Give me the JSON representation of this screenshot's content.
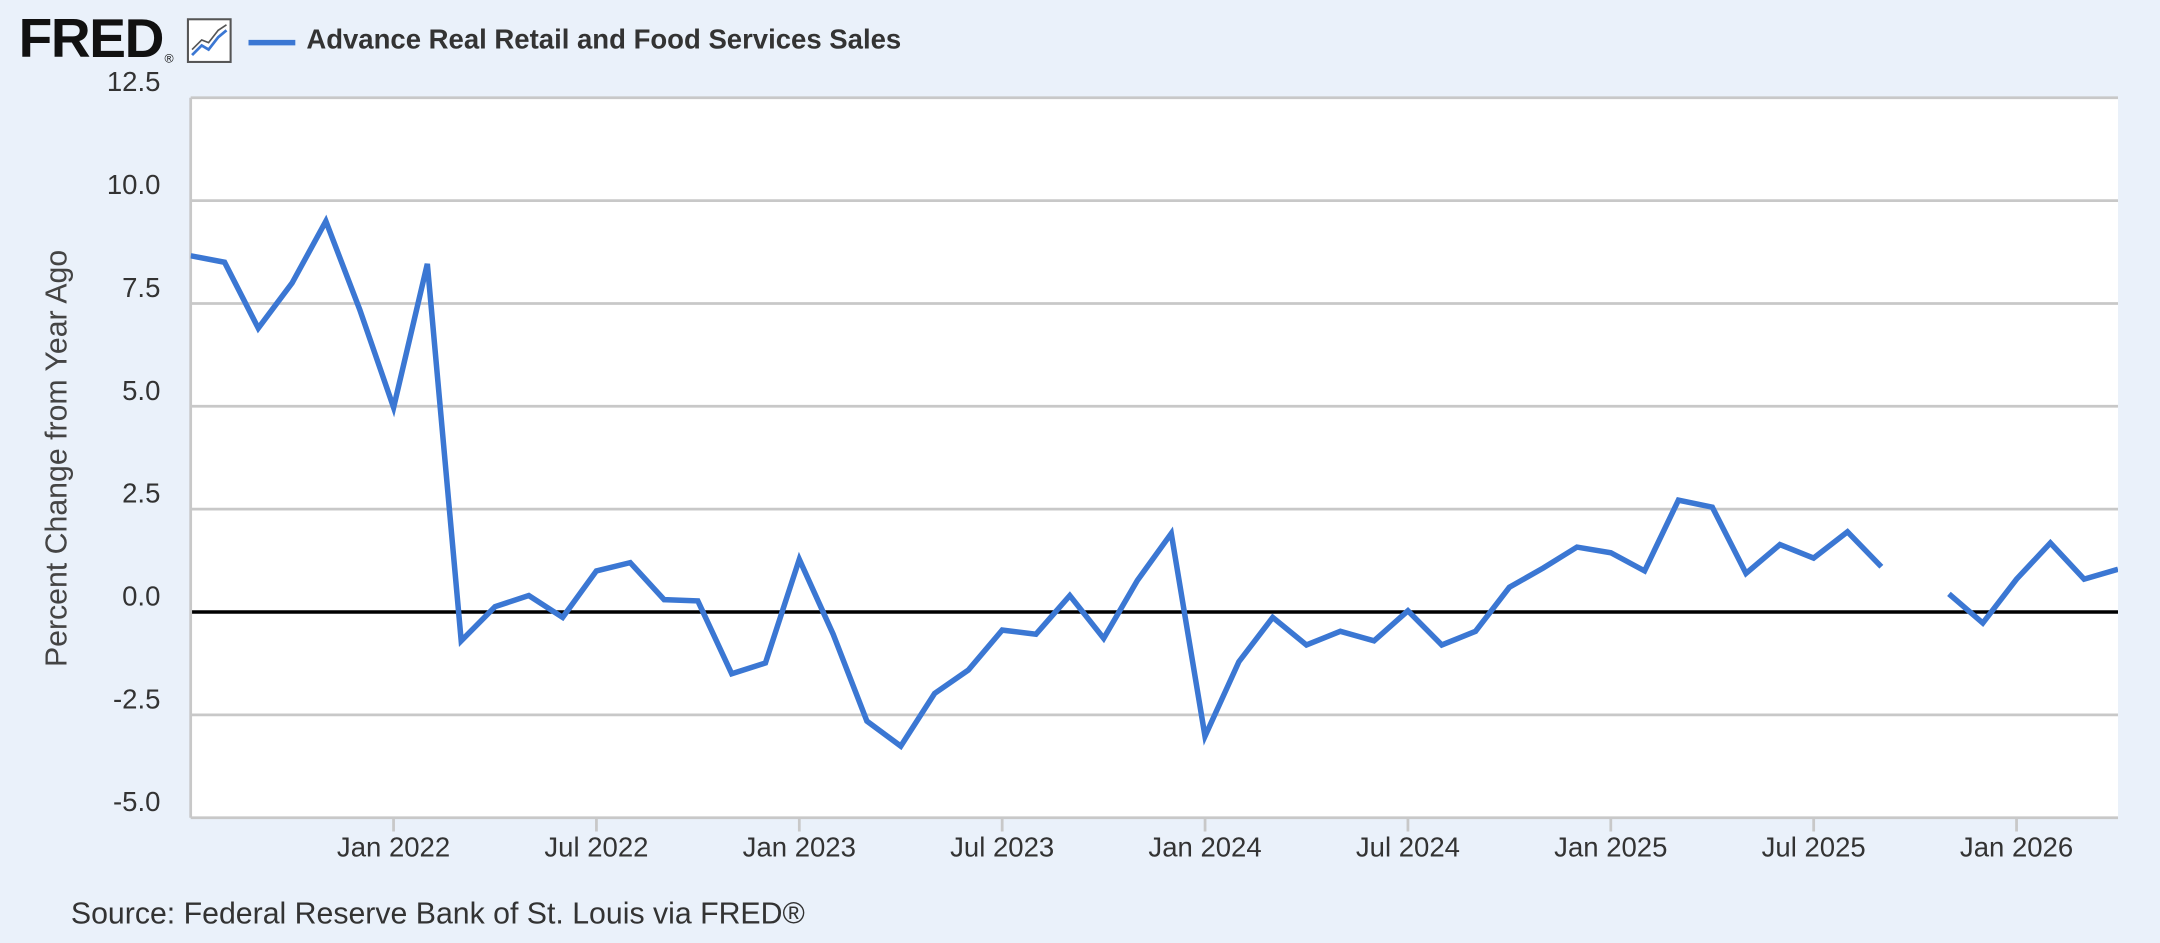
{
  "chart_data": {
    "type": "line",
    "logo": "FRED",
    "logo_mark": "®",
    "ylabel": "Percent Change from Year Ago",
    "source": "Source: Federal Reserve Bank of St. Louis via FRED®",
    "x": [
      "2021-07",
      "2021-08",
      "2021-09",
      "2021-10",
      "2021-11",
      "2021-12",
      "2022-01",
      "2022-02",
      "2022-03",
      "2022-04",
      "2022-05",
      "2022-06",
      "2022-07",
      "2022-08",
      "2022-09",
      "2022-10",
      "2022-11",
      "2022-12",
      "2023-01",
      "2023-02",
      "2023-03",
      "2023-04",
      "2023-05",
      "2023-06",
      "2023-07",
      "2023-08",
      "2023-09",
      "2023-10",
      "2023-11",
      "2023-12",
      "2024-01",
      "2024-02",
      "2024-03",
      "2024-04",
      "2024-05",
      "2024-06",
      "2024-07",
      "2024-08",
      "2024-09",
      "2024-10",
      "2024-11",
      "2024-12",
      "2025-01",
      "2025-02",
      "2025-03",
      "2025-04",
      "2025-05",
      "2025-06",
      "2025-07",
      "2025-08",
      "2025-09",
      "2025-10",
      "2025-11",
      "2025-12",
      "2026-01",
      "2026-02",
      "2026-03",
      "2026-04"
    ],
    "series": [
      {
        "name": "Advance Real Retail and Food Services Sales",
        "color": "#3b77d3",
        "values": [
          8.66,
          8.5,
          6.9,
          8.0,
          9.5,
          7.35,
          4.97,
          8.46,
          -0.7,
          0.13,
          0.4,
          -0.13,
          1.0,
          1.2,
          0.3,
          0.27,
          -1.5,
          -1.24,
          1.28,
          -0.54,
          -2.65,
          -3.26,
          -1.98,
          -1.41,
          -0.44,
          -0.54,
          0.4,
          -0.64,
          0.77,
          1.91,
          -3.02,
          -1.21,
          -0.13,
          -0.8,
          -0.47,
          -0.7,
          0.03,
          -0.8,
          -0.47,
          0.6,
          1.07,
          1.58,
          1.44,
          1.0,
          2.72,
          2.55,
          0.94,
          1.64,
          1.31,
          1.95,
          1.1,
          null,
          0.44,
          -0.27,
          0.8,
          1.68,
          0.8,
          1.04
        ]
      }
    ],
    "xlim": [
      "2021-07",
      "2026-04"
    ],
    "xticks": [
      {
        "value": "2022-01",
        "label": "Jan 2022"
      },
      {
        "value": "2022-07",
        "label": "Jul 2022"
      },
      {
        "value": "2023-01",
        "label": "Jan 2023"
      },
      {
        "value": "2023-07",
        "label": "Jul 2023"
      },
      {
        "value": "2024-01",
        "label": "Jan 2024"
      },
      {
        "value": "2024-07",
        "label": "Jul 2024"
      },
      {
        "value": "2025-01",
        "label": "Jan 2025"
      },
      {
        "value": "2025-07",
        "label": "Jul 2025"
      },
      {
        "value": "2026-01",
        "label": "Jan 2026"
      }
    ],
    "ylim": [
      -5,
      12.5
    ],
    "yticks": [
      {
        "value": -5,
        "label": "-5.0"
      },
      {
        "value": -2.5,
        "label": "-2.5"
      },
      {
        "value": 0,
        "label": "0.0"
      },
      {
        "value": 2.5,
        "label": "2.5"
      },
      {
        "value": 5,
        "label": "5.0"
      },
      {
        "value": 7.5,
        "label": "7.5"
      },
      {
        "value": 10,
        "label": "10.0"
      },
      {
        "value": 12.5,
        "label": "12.5"
      }
    ],
    "grid": true
  }
}
